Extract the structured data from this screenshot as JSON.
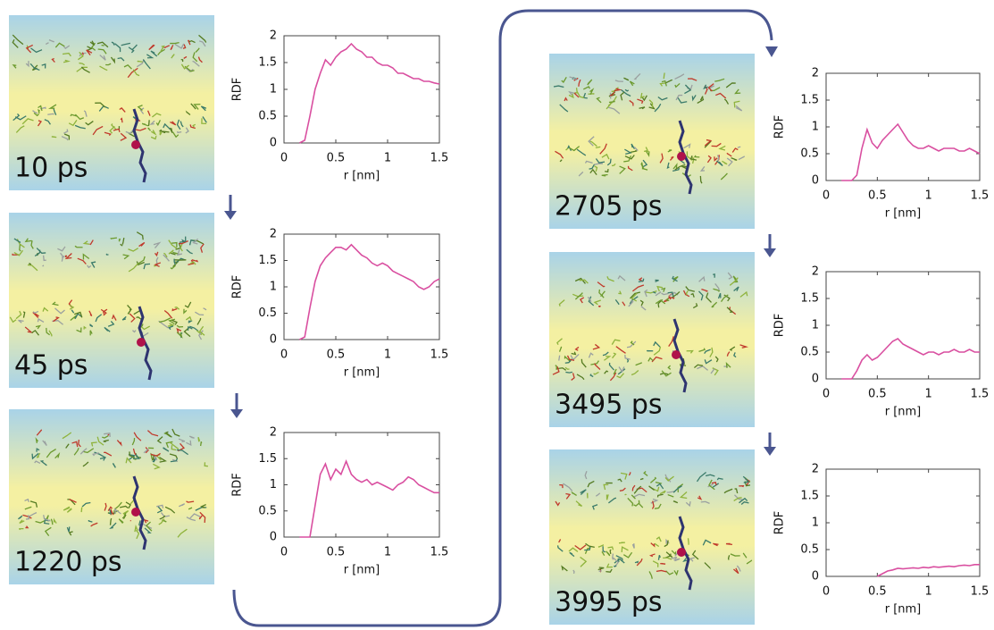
{
  "chart_data": [
    {
      "type": "line",
      "annotation": "10 ps",
      "xlabel": "r [nm]",
      "ylabel": "RDF",
      "color": "#d94fa0",
      "xlim": [
        0,
        1.5
      ],
      "ylim": [
        0,
        2
      ],
      "xticks": [
        0,
        0.5,
        1,
        1.5
      ],
      "yticks": [
        0,
        0.5,
        1,
        1.5,
        2
      ],
      "x": [
        0.15,
        0.2,
        0.25,
        0.3,
        0.35,
        0.4,
        0.45,
        0.5,
        0.55,
        0.6,
        0.65,
        0.7,
        0.75,
        0.8,
        0.85,
        0.9,
        0.95,
        1.0,
        1.05,
        1.1,
        1.15,
        1.2,
        1.25,
        1.3,
        1.35,
        1.4,
        1.45,
        1.5
      ],
      "values": [
        0,
        0.05,
        0.5,
        1.0,
        1.3,
        1.55,
        1.45,
        1.6,
        1.7,
        1.75,
        1.85,
        1.75,
        1.7,
        1.6,
        1.6,
        1.5,
        1.45,
        1.45,
        1.4,
        1.3,
        1.3,
        1.25,
        1.2,
        1.2,
        1.15,
        1.15,
        1.12,
        1.1
      ]
    },
    {
      "type": "line",
      "annotation": "45 ps",
      "xlabel": "r [nm]",
      "ylabel": "RDF",
      "color": "#d94fa0",
      "xlim": [
        0,
        1.5
      ],
      "ylim": [
        0,
        2
      ],
      "xticks": [
        0,
        0.5,
        1,
        1.5
      ],
      "yticks": [
        0,
        0.5,
        1,
        1.5,
        2
      ],
      "x": [
        0.15,
        0.2,
        0.25,
        0.3,
        0.35,
        0.4,
        0.45,
        0.5,
        0.55,
        0.6,
        0.65,
        0.7,
        0.75,
        0.8,
        0.85,
        0.9,
        0.95,
        1.0,
        1.05,
        1.1,
        1.15,
        1.2,
        1.25,
        1.3,
        1.35,
        1.4,
        1.45,
        1.5
      ],
      "values": [
        0,
        0.05,
        0.6,
        1.1,
        1.4,
        1.55,
        1.65,
        1.75,
        1.75,
        1.7,
        1.8,
        1.7,
        1.6,
        1.55,
        1.45,
        1.4,
        1.45,
        1.4,
        1.3,
        1.25,
        1.2,
        1.15,
        1.1,
        1.0,
        0.95,
        1.0,
        1.1,
        1.15
      ]
    },
    {
      "type": "line",
      "annotation": "1220 ps",
      "xlabel": "r [nm]",
      "ylabel": "RDF",
      "color": "#d94fa0",
      "xlim": [
        0,
        1.5
      ],
      "ylim": [
        0,
        2
      ],
      "xticks": [
        0,
        0.5,
        1,
        1.5
      ],
      "yticks": [
        0,
        0.5,
        1,
        1.5,
        2
      ],
      "x": [
        0.15,
        0.2,
        0.25,
        0.3,
        0.35,
        0.4,
        0.45,
        0.5,
        0.55,
        0.6,
        0.65,
        0.7,
        0.75,
        0.8,
        0.85,
        0.9,
        0.95,
        1.0,
        1.05,
        1.1,
        1.15,
        1.2,
        1.25,
        1.3,
        1.35,
        1.4,
        1.45,
        1.5
      ],
      "values": [
        0,
        0,
        0,
        0.6,
        1.2,
        1.4,
        1.1,
        1.3,
        1.2,
        1.45,
        1.2,
        1.1,
        1.05,
        1.1,
        1.0,
        1.05,
        1.0,
        0.95,
        0.9,
        1.0,
        1.05,
        1.15,
        1.1,
        1.0,
        0.95,
        0.9,
        0.85,
        0.85
      ]
    },
    {
      "type": "line",
      "annotation": "2705 ps",
      "xlabel": "r [nm]",
      "ylabel": "RDF",
      "color": "#d94fa0",
      "xlim": [
        0,
        1.5
      ],
      "ylim": [
        0,
        2
      ],
      "xticks": [
        0,
        0.5,
        1,
        1.5
      ],
      "yticks": [
        0,
        0.5,
        1,
        1.5,
        2
      ],
      "x": [
        0.15,
        0.2,
        0.25,
        0.3,
        0.35,
        0.4,
        0.45,
        0.5,
        0.55,
        0.6,
        0.65,
        0.7,
        0.75,
        0.8,
        0.85,
        0.9,
        0.95,
        1.0,
        1.05,
        1.1,
        1.15,
        1.2,
        1.25,
        1.3,
        1.35,
        1.4,
        1.45,
        1.5
      ],
      "values": [
        0,
        0,
        0,
        0.1,
        0.6,
        0.95,
        0.7,
        0.6,
        0.75,
        0.85,
        0.95,
        1.05,
        0.9,
        0.75,
        0.65,
        0.6,
        0.6,
        0.65,
        0.6,
        0.55,
        0.6,
        0.6,
        0.6,
        0.55,
        0.55,
        0.6,
        0.55,
        0.5
      ]
    },
    {
      "type": "line",
      "annotation": "3495 ps",
      "xlabel": "r [nm]",
      "ylabel": "RDF",
      "color": "#d94fa0",
      "xlim": [
        0,
        1.5
      ],
      "ylim": [
        0,
        2
      ],
      "xticks": [
        0,
        0.5,
        1,
        1.5
      ],
      "yticks": [
        0,
        0.5,
        1,
        1.5,
        2
      ],
      "x": [
        0.15,
        0.2,
        0.25,
        0.3,
        0.35,
        0.4,
        0.45,
        0.5,
        0.55,
        0.6,
        0.65,
        0.7,
        0.75,
        0.8,
        0.85,
        0.9,
        0.95,
        1.0,
        1.05,
        1.1,
        1.15,
        1.2,
        1.25,
        1.3,
        1.35,
        1.4,
        1.45,
        1.5
      ],
      "values": [
        0,
        0,
        0,
        0.15,
        0.35,
        0.45,
        0.35,
        0.4,
        0.5,
        0.6,
        0.7,
        0.75,
        0.65,
        0.6,
        0.55,
        0.5,
        0.45,
        0.5,
        0.5,
        0.45,
        0.5,
        0.5,
        0.55,
        0.5,
        0.5,
        0.55,
        0.5,
        0.5
      ]
    },
    {
      "type": "line",
      "annotation": "3995 ps",
      "xlabel": "r [nm]",
      "ylabel": "RDF",
      "color": "#d94fa0",
      "xlim": [
        0,
        1.5
      ],
      "ylim": [
        0,
        2
      ],
      "xticks": [
        0,
        0.5,
        1,
        1.5
      ],
      "yticks": [
        0,
        0.5,
        1,
        1.5,
        2
      ],
      "x": [
        0.5,
        0.55,
        0.6,
        0.65,
        0.7,
        0.75,
        0.8,
        0.85,
        0.9,
        0.95,
        1.0,
        1.05,
        1.1,
        1.15,
        1.2,
        1.25,
        1.3,
        1.35,
        1.4,
        1.45,
        1.5
      ],
      "values": [
        0,
        0.05,
        0.1,
        0.12,
        0.15,
        0.14,
        0.15,
        0.16,
        0.15,
        0.17,
        0.16,
        0.18,
        0.17,
        0.18,
        0.19,
        0.18,
        0.2,
        0.21,
        0.2,
        0.22,
        0.22
      ]
    }
  ]
}
